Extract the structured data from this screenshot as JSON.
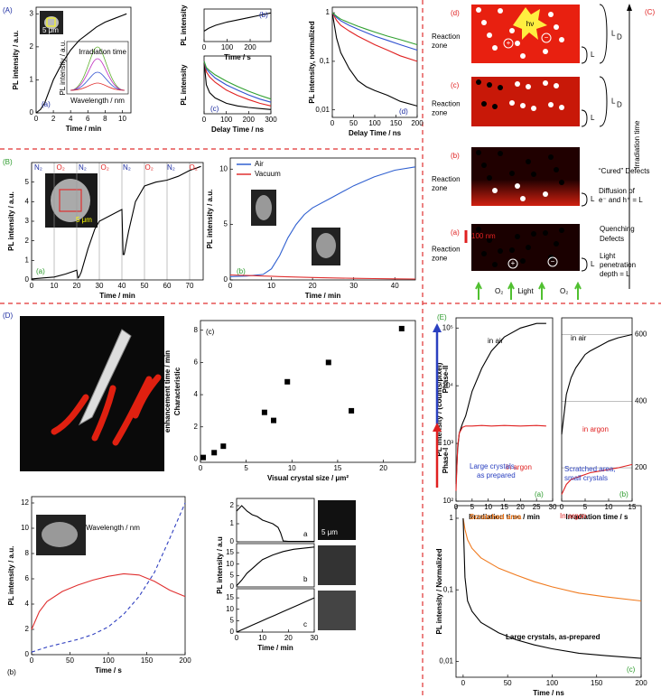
{
  "panels": [
    "(A)",
    "(B)",
    "(C)",
    "(D)",
    "(E)"
  ],
  "phase": [
    "Phase-I",
    "Phase-II"
  ],
  "diagram": {
    "stages": [
      "(d)",
      "(c)",
      "(b)",
      "(a)"
    ],
    "reaction_zone": [
      "Reaction",
      "zone"
    ],
    "L": "L",
    "D": "D",
    "hv": "hν",
    "plus": "+",
    "minus": "−",
    "cured": "“Cured” Defects",
    "diffusion": [
      "Diffusion of",
      "e⁻ and h⁺ = L"
    ],
    "scale": "100 nm",
    "quenching": [
      "Quenching",
      "Defects"
    ],
    "light": "Light",
    "penetration": [
      "Light",
      "penetration",
      "depth = L"
    ],
    "o2": "O₂",
    "irradiation": "Irradiation time"
  },
  "chart_data": [
    {
      "type": "line",
      "xlabel": "Time / min",
      "ylabel": "PL intensity / a.u.",
      "xlim": [
        0,
        11
      ],
      "ylim": [
        0,
        3.2
      ],
      "xticks": [
        0,
        2,
        4,
        6,
        8,
        10
      ],
      "yticks": [
        0,
        1,
        2,
        3
      ],
      "x": [
        0,
        0.5,
        1,
        1.5,
        2,
        3,
        4,
        5,
        6,
        7,
        8,
        9,
        10,
        10.5
      ],
      "series": [
        {
          "color": "#000000",
          "values": [
            0,
            0.1,
            0.3,
            0.65,
            1.0,
            1.5,
            1.9,
            2.2,
            2.4,
            2.6,
            2.75,
            2.85,
            2.95,
            3.0
          ]
        }
      ],
      "annotations": [
        "(a)",
        "5 μm",
        "Irradiation time",
        "Wavelength / nm",
        "PL intensity / a.u."
      ]
    },
    {
      "type": "line",
      "xlabel": "Time / s",
      "ylabel": "PL intensity",
      "xlim": [
        0,
        290
      ],
      "ylim": [
        0,
        1.1
      ],
      "xticks": [
        0,
        100,
        200
      ],
      "x": [
        0,
        20,
        50,
        100,
        150,
        200,
        250,
        290
      ],
      "series": [
        {
          "color": "#000000",
          "values": [
            0.35,
            0.45,
            0.55,
            0.66,
            0.74,
            0.82,
            0.9,
            0.97
          ]
        }
      ],
      "annotations": [
        "(b)"
      ]
    },
    {
      "type": "line",
      "xlabel": "Delay Time / ns",
      "ylabel": "PL intensity",
      "xlim": [
        0,
        300
      ],
      "ylim": [
        0,
        1.1
      ],
      "xticks": [
        0,
        100,
        200,
        300
      ],
      "x": [
        0,
        10,
        25,
        50,
        100,
        150,
        200,
        250,
        300
      ],
      "series": [
        {
          "color": "#000000",
          "values": [
            1,
            0.55,
            0.4,
            0.3,
            0.2,
            0.15,
            0.12,
            0.1,
            0.08
          ]
        },
        {
          "color": "#e02020",
          "values": [
            1,
            0.8,
            0.7,
            0.6,
            0.45,
            0.35,
            0.27,
            0.2,
            0.15
          ]
        },
        {
          "color": "#3050d0",
          "values": [
            1,
            0.85,
            0.78,
            0.68,
            0.55,
            0.45,
            0.36,
            0.28,
            0.22
          ]
        },
        {
          "color": "#30a030",
          "values": [
            1,
            0.88,
            0.82,
            0.74,
            0.62,
            0.52,
            0.43,
            0.35,
            0.28
          ]
        }
      ],
      "annotations": [
        "(c)"
      ]
    },
    {
      "type": "line",
      "ylog": true,
      "xlabel": "Delay Time / ns",
      "ylabel": "PL intensity, normalized",
      "xlim": [
        0,
        200
      ],
      "ylim": [
        0.007,
        1.3
      ],
      "xticks": [
        0,
        50,
        100,
        150,
        200
      ],
      "yticks": [
        {
          "value": 1,
          "label": "1"
        },
        {
          "value": 0.1,
          "label": "0,1"
        },
        {
          "value": 0.01,
          "label": "0,01"
        }
      ],
      "x": [
        0,
        10,
        20,
        40,
        60,
        80,
        100,
        130,
        160,
        200
      ],
      "series": [
        {
          "color": "#000000",
          "values": [
            1,
            0.3,
            0.15,
            0.07,
            0.04,
            0.03,
            0.025,
            0.02,
            0.015,
            0.012
          ]
        },
        {
          "color": "#e02020",
          "values": [
            1,
            0.7,
            0.55,
            0.42,
            0.33,
            0.27,
            0.22,
            0.17,
            0.13,
            0.1
          ]
        },
        {
          "color": "#3050d0",
          "values": [
            1,
            0.8,
            0.68,
            0.55,
            0.46,
            0.39,
            0.33,
            0.27,
            0.22,
            0.17
          ]
        },
        {
          "color": "#30a030",
          "values": [
            1,
            0.85,
            0.74,
            0.62,
            0.53,
            0.46,
            0.4,
            0.33,
            0.28,
            0.22
          ]
        }
      ],
      "annotations": [
        "(d)"
      ]
    },
    {
      "type": "line",
      "grid": "x",
      "xlabel": "Time / min",
      "ylabel": "PL intensity / a.u.",
      "xlim": [
        0,
        76
      ],
      "ylim": [
        0,
        6
      ],
      "xticks": [
        0,
        10,
        20,
        30,
        40,
        50,
        60,
        70
      ],
      "yticks": [
        0,
        1,
        2,
        3,
        4,
        5
      ],
      "x": [
        0,
        5,
        10,
        15,
        20,
        20.5,
        21,
        22,
        25,
        28,
        30,
        35,
        40,
        40.5,
        41,
        43,
        46,
        50,
        55,
        60,
        65,
        70,
        75
      ],
      "series": [
        {
          "color": "#000000",
          "values": [
            0.05,
            0.1,
            0.15,
            0.3,
            0.5,
            0.1,
            0.15,
            0.4,
            1.6,
            2.6,
            3.0,
            3.3,
            3.6,
            1.3,
            1.3,
            2.5,
            4.0,
            4.8,
            5.0,
            5.1,
            5.3,
            5.6,
            5.8
          ]
        }
      ],
      "annotations": [
        "(a)",
        "N₂",
        "O₂",
        "N₂",
        "O₂",
        "N₂",
        "O₂",
        "N₂",
        "O₂",
        "5 μm"
      ]
    },
    {
      "type": "line",
      "legend": "upper left",
      "xlabel": "Time / min",
      "ylabel": "PL intensity / a.u.",
      "xlim": [
        0,
        45
      ],
      "ylim": [
        0,
        11
      ],
      "xticks": [
        0,
        10,
        20,
        30,
        40
      ],
      "yticks": [
        0,
        5,
        10
      ],
      "x": [
        0,
        4,
        8,
        10,
        12,
        14,
        16,
        18,
        20,
        25,
        30,
        35,
        40,
        45
      ],
      "series": [
        {
          "name": "Air",
          "color": "#3060d0",
          "values": [
            0.3,
            0.35,
            0.5,
            1.0,
            2.2,
            3.8,
            5.0,
            5.9,
            6.5,
            7.5,
            8.5,
            9.3,
            9.9,
            10.2
          ]
        },
        {
          "name": "Vacuum",
          "color": "#e03030",
          "values": [
            0.45,
            0.4,
            0.35,
            0.33,
            0.3,
            0.28,
            0.26,
            0.24,
            0.22,
            0.18,
            0.15,
            0.12,
            0.1,
            0.08
          ]
        }
      ],
      "annotations": [
        "(b)"
      ]
    },
    {
      "type": "scatter",
      "xlabel": "Visual crystal size / μm²",
      "ylabel": [
        "Characteristic",
        "enhancement time / min"
      ],
      "xlim": [
        0,
        23.5
      ],
      "ylim": [
        -0.2,
        8.6
      ],
      "xticks": [
        0,
        5,
        10,
        15,
        20
      ],
      "yticks": [
        0,
        2,
        4,
        6,
        8
      ],
      "x": [
        0.3,
        1.5,
        2.5,
        7,
        8,
        9.5,
        14,
        16.5,
        22
      ],
      "values": [
        0.1,
        0.4,
        0.8,
        2.9,
        2.4,
        4.8,
        6,
        3,
        8.1
      ],
      "color": "#000000",
      "annotations": [
        "(c)"
      ]
    },
    {
      "type": "line",
      "xlabel": "Time / s",
      "ylabel": "PL intensity / a.u.",
      "xlim": [
        0,
        200
      ],
      "ylim": [
        0,
        12.5
      ],
      "xticks": [
        0,
        50,
        100,
        150,
        200
      ],
      "yticks": [
        0,
        2,
        4,
        6,
        8,
        10,
        12
      ],
      "x": [
        0,
        10,
        20,
        40,
        60,
        80,
        100,
        120,
        140,
        160,
        180,
        200
      ],
      "series": [
        {
          "color": "#e03030",
          "values": [
            2,
            3.4,
            4.2,
            5,
            5.5,
            5.9,
            6.2,
            6.4,
            6.3,
            5.8,
            5.1,
            4.6
          ]
        },
        {
          "color": "#3040c0",
          "dash": true,
          "values": [
            0.2,
            0.4,
            0.6,
            0.9,
            1.2,
            1.6,
            2.2,
            3.2,
            4.6,
            6.5,
            9.2,
            12
          ]
        }
      ],
      "annotations": [
        "(b)",
        "Wavelength / nm"
      ]
    },
    {
      "type": "line",
      "xlim": [
        0,
        30
      ],
      "ylim": [
        0,
        2.4
      ],
      "yticks": [
        0,
        1,
        2
      ],
      "x": [
        0,
        2,
        4,
        6,
        8,
        10,
        12,
        14,
        16,
        17,
        18,
        20,
        25,
        30
      ],
      "series": [
        {
          "color": "#000000",
          "values": [
            1.7,
            2.0,
            1.7,
            1.5,
            1.4,
            1.2,
            1.1,
            1.0,
            0.8,
            0.5,
            0.05,
            0.02,
            0.02,
            0.02
          ]
        }
      ],
      "annotations": [
        "a",
        "5 μm"
      ]
    },
    {
      "type": "line",
      "ylabel": "PL intensity / a.u",
      "xlim": [
        0,
        30
      ],
      "ylim": [
        0,
        19
      ],
      "yticks": [
        0,
        5,
        10,
        15
      ],
      "x": [
        0,
        2,
        4,
        6,
        8,
        10,
        14,
        18,
        22,
        26,
        30
      ],
      "series": [
        {
          "color": "#000000",
          "values": [
            0.5,
            3,
            6,
            8,
            10,
            12,
            14,
            15.5,
            16.5,
            17,
            17.5
          ]
        }
      ],
      "annotations": [
        "b"
      ]
    },
    {
      "type": "line",
      "xlabel": "Time / min",
      "xlim": [
        0,
        30
      ],
      "ylim": [
        0,
        19
      ],
      "xticks": [
        0,
        10,
        20,
        30
      ],
      "yticks": [
        0,
        5,
        10,
        15
      ],
      "x": [
        0,
        3,
        6,
        9,
        12,
        15,
        18,
        21,
        24,
        27,
        30
      ],
      "series": [
        {
          "color": "#000000",
          "values": [
            0,
            1.5,
            3,
            4.5,
            6,
            7.5,
            9,
            10.5,
            12,
            13.5,
            15
          ]
        }
      ],
      "annotations": [
        "c"
      ]
    },
    {
      "type": "line",
      "ylog": true,
      "xlabel": "Irradiation time / min",
      "ylabel": "PL intensity / (counts/pixel)",
      "xlim": [
        0,
        30
      ],
      "ylim": [
        100,
        150000
      ],
      "xticks": [
        0,
        5,
        10,
        15,
        20,
        25,
        30
      ],
      "yticks": [
        {
          "value": 100,
          "label": "10²"
        },
        {
          "value": 1000,
          "label": "10³"
        },
        {
          "value": 10000,
          "label": "10⁴"
        },
        {
          "value": 100000,
          "label": "10⁵"
        }
      ],
      "x": [
        0,
        0.5,
        1,
        2,
        3,
        5,
        8,
        11,
        15,
        20,
        25,
        28
      ],
      "series": [
        {
          "name": "in air",
          "color": "#000000",
          "values": [
            200,
            800,
            1500,
            2200,
            3000,
            8000,
            20000,
            40000,
            70000,
            100000,
            120000,
            120000
          ]
        },
        {
          "name": "in argon",
          "color": "#e02020",
          "values": [
            150,
            900,
            1500,
            1900,
            2000,
            2000,
            2050,
            2000,
            2050,
            2000,
            2050,
            2000
          ]
        }
      ],
      "annotations": [
        "Large crystals,",
        "as prepared",
        "(a)"
      ]
    },
    {
      "type": "line",
      "grid": "y2",
      "xlabel": "Irradiation time / s",
      "xlim": [
        0,
        15
      ],
      "y2lim": [
        100,
        650
      ],
      "xticks": [
        0,
        5,
        10,
        15
      ],
      "y2ticks": [
        200,
        400,
        600
      ],
      "x": [
        0,
        1,
        2,
        3,
        4,
        5,
        6,
        8,
        10,
        12,
        15
      ],
      "series": [
        {
          "name": "in air",
          "color": "#000000",
          "axis": "y2",
          "values": [
            300,
            420,
            470,
            500,
            520,
            540,
            550,
            565,
            580,
            590,
            600
          ]
        },
        {
          "name": "in argon",
          "color": "#e02020",
          "axis": "y2",
          "values": [
            120,
            150,
            165,
            170,
            175,
            180,
            185,
            190,
            195,
            200,
            210
          ]
        }
      ],
      "annotations": [
        "Scratched area,",
        "small crystals",
        "(b)"
      ]
    },
    {
      "type": "line",
      "ylog": true,
      "xlabel": "Time / ns",
      "ylabel": "PL intensity / Normalized",
      "xlim": [
        -8,
        200
      ],
      "ylim": [
        0.006,
        1.5
      ],
      "xticks": [
        0,
        50,
        100,
        150,
        200
      ],
      "yticks": [
        {
          "value": 1,
          "label": "1"
        },
        {
          "value": 0.1,
          "label": "0,1"
        },
        {
          "value": 0.01,
          "label": "0,01"
        }
      ],
      "x": [
        0,
        2,
        5,
        10,
        20,
        40,
        60,
        80,
        100,
        130,
        160,
        200
      ],
      "series": [
        {
          "name": "Scratched area",
          "color": "#f07a1e",
          "values": [
            1,
            0.7,
            0.5,
            0.38,
            0.28,
            0.2,
            0.16,
            0.13,
            0.11,
            0.09,
            0.08,
            0.07
          ]
        },
        {
          "name": "Large crystals, as-prepared",
          "color": "#000000",
          "values": [
            1,
            0.15,
            0.07,
            0.05,
            0.035,
            0.025,
            0.02,
            0.017,
            0.015,
            0.013,
            0.012,
            0.011
          ]
        }
      ],
      "annotations": [
        "In argon",
        "(c)"
      ]
    }
  ]
}
